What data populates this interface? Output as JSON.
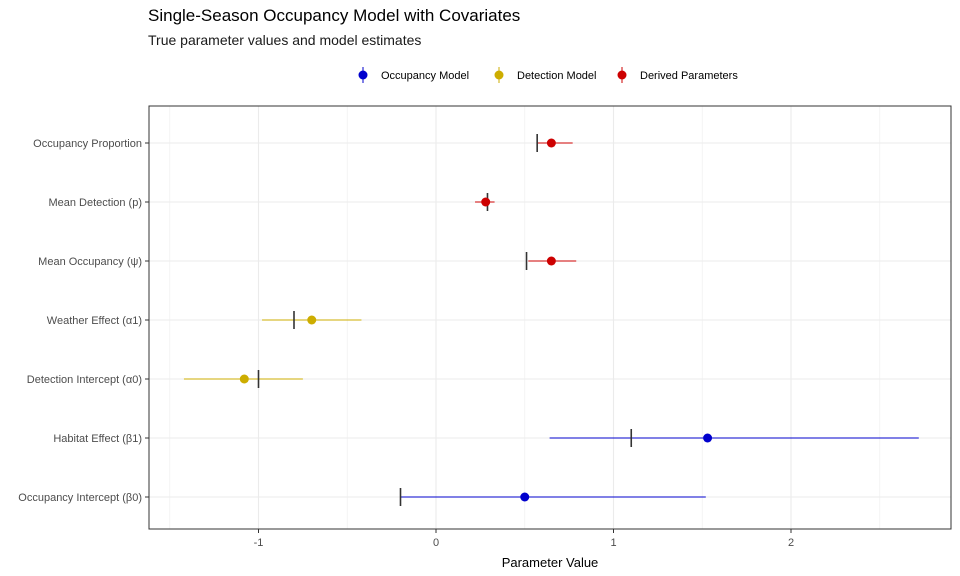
{
  "chart_data": {
    "type": "dot-interval",
    "title": "Single-Season Occupancy Model with Covariates",
    "subtitle": "True parameter values and model estimates",
    "xlabel": "Parameter Value",
    "ylabel": "",
    "xlim": [
      -1.6,
      2.9
    ],
    "x_ticks": [
      -1,
      0,
      1,
      2
    ],
    "grid": true,
    "legend_position": "top",
    "groups": [
      {
        "name": "Occupancy Model",
        "color": "#0000CD"
      },
      {
        "name": "Detection Model",
        "color": "#CDAD00"
      },
      {
        "name": "Derived Parameters",
        "color": "#CD0000"
      }
    ],
    "categories": [
      "Occupancy Proportion",
      "Mean Detection (p)",
      "Mean Occupancy (ψ)",
      "Weather Effect (α1)",
      "Detection Intercept (α0)",
      "Habitat Effect (β1)",
      "Occupancy Intercept (β0)"
    ],
    "points": [
      {
        "parameter": "Occupancy Proportion",
        "group": "Derived Parameters",
        "estimate": 0.65,
        "lower": 0.57,
        "upper": 0.77,
        "true_value": 0.57
      },
      {
        "parameter": "Mean Detection (p)",
        "group": "Derived Parameters",
        "estimate": 0.28,
        "lower": 0.22,
        "upper": 0.33,
        "true_value": 0.29
      },
      {
        "parameter": "Mean Occupancy (ψ)",
        "group": "Derived Parameters",
        "estimate": 0.65,
        "lower": 0.52,
        "upper": 0.79,
        "true_value": 0.51
      },
      {
        "parameter": "Weather Effect (α1)",
        "group": "Detection Model",
        "estimate": -0.7,
        "lower": -0.98,
        "upper": -0.42,
        "true_value": -0.8
      },
      {
        "parameter": "Detection Intercept (α0)",
        "group": "Detection Model",
        "estimate": -1.08,
        "lower": -1.42,
        "upper": -0.75,
        "true_value": -1.0
      },
      {
        "parameter": "Habitat Effect (β1)",
        "group": "Occupancy Model",
        "estimate": 1.53,
        "lower": 0.64,
        "upper": 2.72,
        "true_value": 1.1
      },
      {
        "parameter": "Occupancy Intercept (β0)",
        "group": "Occupancy Model",
        "estimate": 0.5,
        "lower": -0.2,
        "upper": 1.52,
        "true_value": -0.2
      }
    ]
  }
}
